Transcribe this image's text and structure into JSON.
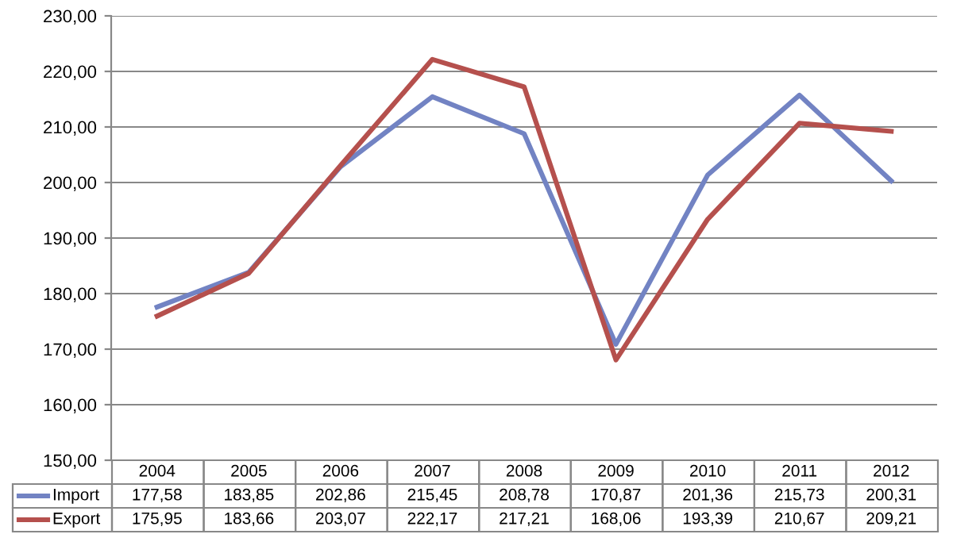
{
  "chart_data": {
    "type": "line",
    "categories": [
      "2004",
      "2005",
      "2006",
      "2007",
      "2008",
      "2009",
      "2010",
      "2011",
      "2012"
    ],
    "series": [
      {
        "name": "Import",
        "color": "#7283c3",
        "values": [
          177.58,
          183.85,
          202.86,
          215.45,
          208.78,
          170.87,
          201.36,
          215.73,
          200.31
        ],
        "value_labels": [
          "177,58",
          "183,85",
          "202,86",
          "215,45",
          "208,78",
          "170,87",
          "201,36",
          "215,73",
          "200,31"
        ]
      },
      {
        "name": "Export",
        "color": "#b5504d",
        "values": [
          175.95,
          183.66,
          203.07,
          222.17,
          217.21,
          168.06,
          193.39,
          210.67,
          209.21
        ],
        "value_labels": [
          "175,95",
          "183,66",
          "203,07",
          "222,17",
          "217,21",
          "168,06",
          "193,39",
          "210,67",
          "209,21"
        ]
      }
    ],
    "ylim": [
      150,
      230
    ],
    "yticks": [
      {
        "value": 150,
        "label": "150,00"
      },
      {
        "value": 160,
        "label": "160,00"
      },
      {
        "value": 170,
        "label": "170,00"
      },
      {
        "value": 180,
        "label": "180,00"
      },
      {
        "value": 190,
        "label": "190,00"
      },
      {
        "value": 200,
        "label": "200,00"
      },
      {
        "value": 210,
        "label": "210,00"
      },
      {
        "value": 220,
        "label": "220,00"
      },
      {
        "value": 230,
        "label": "230,00"
      }
    ],
    "grid": "y",
    "legend": "bottom left",
    "marker": "none",
    "line_style": "solid"
  }
}
